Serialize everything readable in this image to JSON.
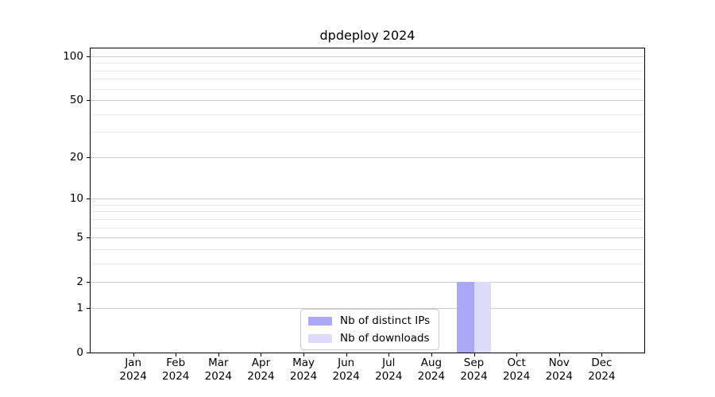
{
  "title": "dpdeploy 2024",
  "colors": {
    "major_grid": "#cccccc",
    "minor_grid": "#ebebeb",
    "spine": "#000000",
    "legend_border": "#cccccc",
    "background": "#ffffff",
    "series_1": "#a9a9f6",
    "series_2": "#dcdcfa"
  },
  "chart_data": {
    "type": "bar",
    "title": "dpdeploy 2024",
    "categories": [
      "Jan",
      "Feb",
      "Mar",
      "Apr",
      "May",
      "Jun",
      "Jul",
      "Aug",
      "Sep",
      "Oct",
      "Nov",
      "Dec"
    ],
    "category_year": "2024",
    "series": [
      {
        "name": "Nb of distinct IPs",
        "color": "#a9a9f6",
        "values": [
          0,
          0,
          0,
          0,
          0,
          0,
          0,
          0,
          2,
          0,
          0,
          0
        ]
      },
      {
        "name": "Nb of downloads",
        "color": "#dcdcfa",
        "values": [
          0,
          0,
          0,
          0,
          0,
          0,
          0,
          0,
          2,
          0,
          0,
          0
        ]
      }
    ],
    "xlabel": "",
    "ylabel": "",
    "yscale": "log1p",
    "ylim": [
      0,
      113
    ],
    "y_major_ticks": [
      0,
      1,
      2,
      5,
      10,
      20,
      50,
      100
    ],
    "y_minor_ticks": [
      3,
      4,
      6,
      7,
      8,
      9,
      30,
      40,
      60,
      70,
      80,
      90
    ],
    "grid": true,
    "legend_position": "lower center"
  }
}
